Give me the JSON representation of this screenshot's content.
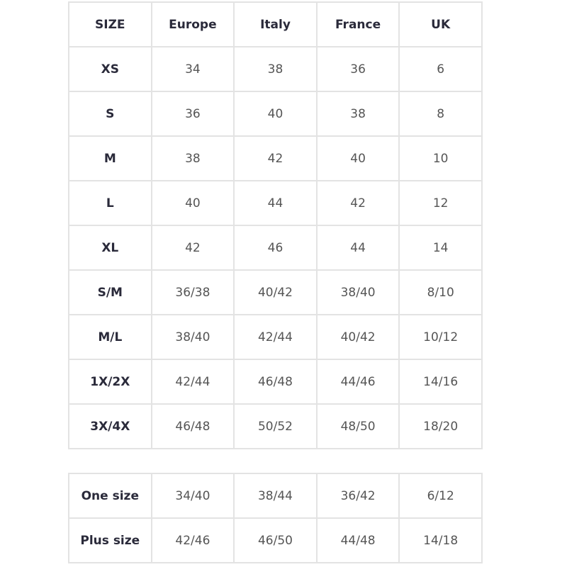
{
  "size_table": {
    "headers": [
      "SIZE",
      "Europe",
      "Italy",
      "France",
      "UK"
    ],
    "rows": [
      [
        "XS",
        "34",
        "38",
        "36",
        "6"
      ],
      [
        "S",
        "36",
        "40",
        "38",
        "8"
      ],
      [
        "M",
        "38",
        "42",
        "40",
        "10"
      ],
      [
        "L",
        "40",
        "44",
        "42",
        "12"
      ],
      [
        "XL",
        "42",
        "46",
        "44",
        "14"
      ],
      [
        "S/M",
        "36/38",
        "40/42",
        "38/40",
        "8/10"
      ],
      [
        "M/L",
        "38/40",
        "42/44",
        "40/42",
        "10/12"
      ],
      [
        "1X/2X",
        "42/44",
        "46/48",
        "44/46",
        "14/16"
      ],
      [
        "3X/4X",
        "46/48",
        "50/52",
        "48/50",
        "18/20"
      ]
    ]
  },
  "extra_table": {
    "rows": [
      [
        "One size",
        "34/40",
        "38/44",
        "36/42",
        "6/12"
      ],
      [
        "Plus size",
        "42/46",
        "46/50",
        "44/48",
        "14/18"
      ]
    ]
  },
  "colors": {
    "border": "#e3e3e3",
    "header_text": "#2a2a3a",
    "value_text": "#555555"
  }
}
